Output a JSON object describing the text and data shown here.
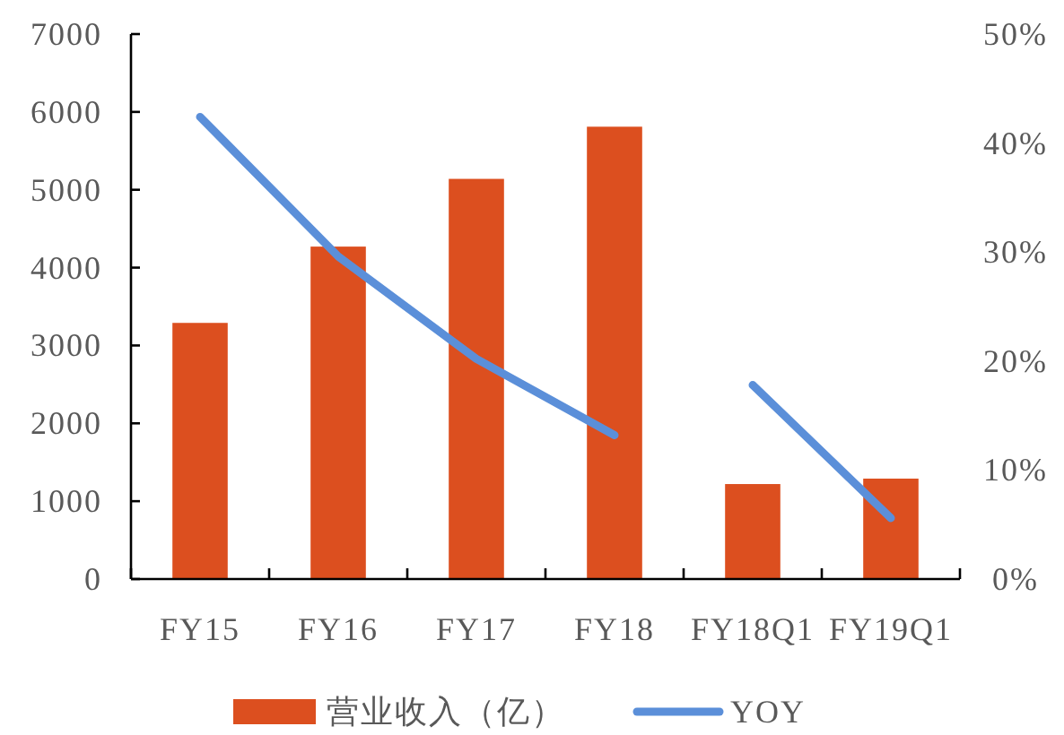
{
  "chart_data": {
    "type": "bar",
    "categories": [
      "FY15",
      "FY16",
      "FY17",
      "FY18",
      "FY18Q1",
      "FY19Q1"
    ],
    "series": [
      {
        "name": "营业收入（亿）",
        "color": "#dc4f1f",
        "values": [
          3290,
          4270,
          5140,
          5810,
          1220,
          1290
        ]
      },
      {
        "name": "YOY",
        "type": "line",
        "axis": "y2",
        "color": "#5b8fd9",
        "values": [
          42.4,
          29.6,
          20.2,
          13.2,
          null,
          null
        ]
      },
      {
        "type": "line",
        "axis": "y2",
        "color": "#5b8fd9",
        "values": [
          null,
          null,
          null,
          null,
          17.8,
          5.6
        ]
      }
    ],
    "ylim": [
      0,
      7000
    ],
    "yticks": [
      0,
      1000,
      2000,
      3000,
      4000,
      5000,
      6000,
      7000
    ],
    "y2lim": [
      0,
      50
    ],
    "y2ticks": [
      {
        "value": 0,
        "label": "0%"
      },
      {
        "value": 10,
        "label": "10%"
      },
      {
        "value": 20,
        "label": "20%"
      },
      {
        "value": 30,
        "label": "30%"
      },
      {
        "value": 40,
        "label": "40%"
      },
      {
        "value": 50,
        "label": "50%"
      }
    ],
    "legend": "bottom"
  }
}
